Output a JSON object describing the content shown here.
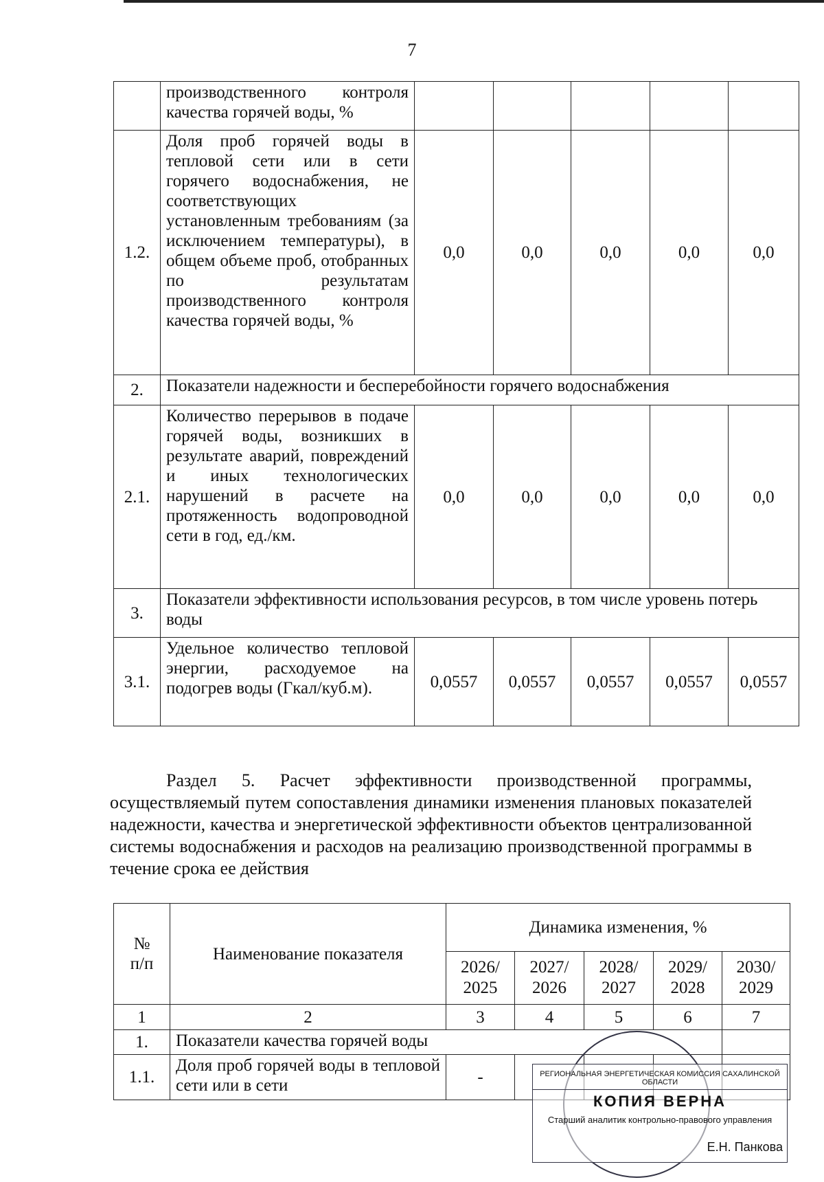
{
  "page_number": "7",
  "table1": {
    "rows": [
      {
        "num": "",
        "name": "производственного контроля качества горячей воды, %",
        "values": [
          "",
          "",
          "",
          "",
          ""
        ]
      },
      {
        "num": "1.2.",
        "name": "Доля проб горячей воды в тепловой сети или в сети горячего водоснабжения, не соответствующих установленным требованиям (за исключением температуры), в общем объеме проб, отобранных по результатам производственного контроля качества горячей воды, %",
        "values": [
          "0,0",
          "0,0",
          "0,0",
          "0,0",
          "0,0"
        ]
      },
      {
        "num": "2.",
        "name": "Показатели надежности и бесперебойности горячего водоснабжения"
      },
      {
        "num": "2.1.",
        "name": "Количество перерывов в подаче горячей воды, возникших в результате аварий, повреждений и иных технологических нарушений в расчете на протяженность водопроводной сети в год, ед./км.",
        "values": [
          "0,0",
          "0,0",
          "0,0",
          "0,0",
          "0,0"
        ]
      },
      {
        "num": "3.",
        "name": "Показатели эффективности использования ресурсов, в том числе уровень потерь воды"
      },
      {
        "num": "3.1.",
        "name": "Удельное количество тепловой энергии, расходуемое на подогрев воды (Гкал/куб.м).",
        "values": [
          "0,0557",
          "0,0557",
          "0,0557",
          "0,0557",
          "0,0557"
        ]
      }
    ]
  },
  "section_text": "Раздел 5. Расчет эффективности производственной программы, осуществляемый путем сопоставления динамики изменения плановых показателей надежности, качества и энергетической эффективности объектов централизованной системы водоснабжения и расходов на реализацию производственной программы в течение срока ее действия",
  "table2": {
    "header": {
      "num": "№\nп/п",
      "name": "Наименование показателя",
      "group": "Динамика изменения, %",
      "periods": [
        "2026/\n2025",
        "2027/\n2026",
        "2028/\n2027",
        "2029/\n2028",
        "2030/\n2029"
      ]
    },
    "column_numbers": [
      "1",
      "2",
      "3",
      "4",
      "5",
      "6",
      "7"
    ],
    "rows": [
      {
        "num": "1.",
        "name": "Показатели качества горячей воды"
      },
      {
        "num": "1.1.",
        "name": "Доля проб горячей воды в тепловой сети или в сети",
        "values": [
          "-",
          "",
          "",
          "",
          ""
        ]
      }
    ]
  },
  "stamp": {
    "organization": "РЕГИОНАЛЬНАЯ ЭНЕРГЕТИЧЕСКАЯ КОМИССИЯ САХАЛИНСКОЙ ОБЛАСТИ",
    "mark": "КОПИЯ ВЕРНА",
    "position": "Старший аналитик контрольно-правового управления",
    "signer": "Е.Н. Панкова"
  }
}
